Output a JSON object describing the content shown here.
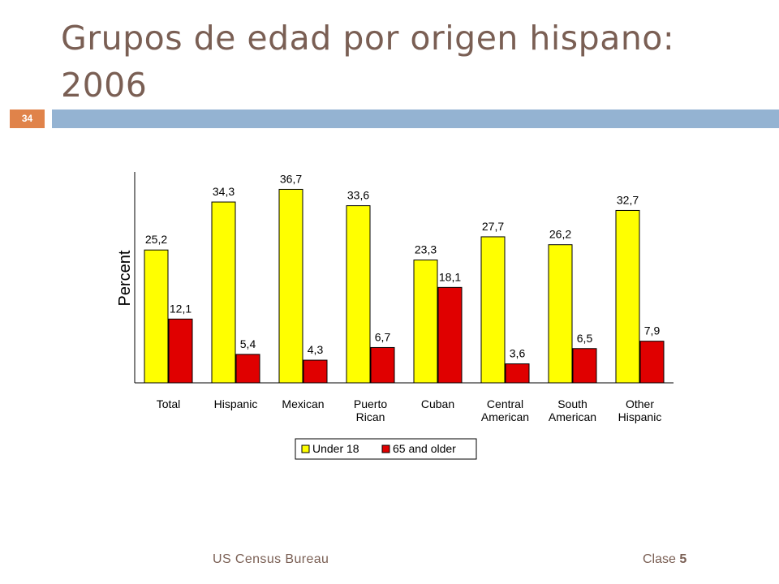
{
  "slide": {
    "title": "Grupos de edad por origen hispano: 2006",
    "number": "34",
    "footer_source": "US Census Bureau",
    "footer_clase_label": "Clase",
    "footer_clase_number": "5"
  },
  "colors": {
    "title": "#7a5f54",
    "header_bar": "#94b3d2",
    "slide_number_bg": "#e0834a",
    "under18": "#ffff00",
    "older65": "#e00000"
  },
  "chart_data": {
    "type": "bar",
    "title": "",
    "xlabel": "",
    "ylabel": "Percent",
    "ylim": [
      0,
      40
    ],
    "grid": false,
    "legend_position": "bottom",
    "categories": [
      [
        "Total"
      ],
      [
        "Hispanic"
      ],
      [
        "Mexican"
      ],
      [
        "Puerto",
        "Rican"
      ],
      [
        "Cuban"
      ],
      [
        "Central",
        "American"
      ],
      [
        "South",
        "American"
      ],
      [
        "Other",
        "Hispanic"
      ]
    ],
    "series": [
      {
        "name": "Under 18",
        "color": "#ffff00",
        "values": [
          25.2,
          34.3,
          36.7,
          33.6,
          23.3,
          27.7,
          26.2,
          32.7
        ],
        "labels": [
          "25,2",
          "34,3",
          "36,7",
          "33,6",
          "23,3",
          "27,7",
          "26,2",
          "32,7"
        ]
      },
      {
        "name": "65 and older",
        "color": "#e00000",
        "values": [
          12.1,
          5.4,
          4.3,
          6.7,
          18.1,
          3.6,
          6.5,
          7.9
        ],
        "labels": [
          "12,1",
          "5,4",
          "4,3",
          "6,7",
          "18,1",
          "3,6",
          "6,5",
          "7,9"
        ]
      }
    ]
  }
}
